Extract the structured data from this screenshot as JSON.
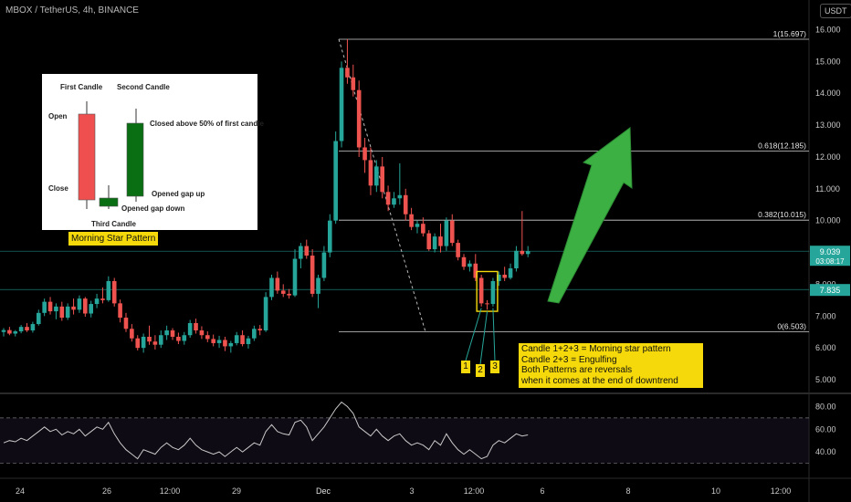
{
  "header": {
    "title": "MBOX / TetherUS, 4h, BINANCE",
    "currency": "USDT"
  },
  "price_labels": {
    "current": "9.039",
    "countdown": "03:08:17",
    "level": "7.835"
  },
  "inset": {
    "first_candle": "First Candle",
    "second_candle": "Second Candle",
    "open": "Open",
    "close": "Close",
    "closed_above": "Closed above 50% of first candle",
    "opened_gap_up": "Opened gap up",
    "opened_gap_down": "Opened gap down",
    "third_candle": "Third Candle",
    "title": "Morning Star Pattern"
  },
  "note": {
    "line1": "Candle 1+2+3 = Morning star pattern",
    "line2": "Candle 2+3 = Engulfing",
    "line3": "Both Patterns are reversals",
    "line4": " when it comes at the end of downtrend"
  },
  "numbers": [
    "1",
    "2",
    "3"
  ],
  "colors": {
    "up": "#26a69a",
    "down": "#ef5350",
    "fib": "#cfcfcf",
    "arrow": "#3cb043",
    "highlight": "#f5d90a",
    "rsi": "#c8c8c8"
  },
  "chart_data": {
    "type": "candlestick",
    "symbol": "MBOX / TetherUS",
    "interval": "4h",
    "exchange": "BINANCE",
    "x_tick_labels": [
      "24",
      "26",
      "12:00",
      "29",
      "Dec",
      "3",
      "12:00",
      "6",
      "8",
      "10",
      "12:00"
    ],
    "y_ticks": [
      5,
      6,
      7,
      8,
      9,
      10,
      11,
      12,
      13,
      14,
      15,
      16
    ],
    "ylim": [
      4.6,
      16.3
    ],
    "grid": false,
    "candles": [
      [
        6.5,
        6.62,
        6.36,
        6.56
      ],
      [
        6.56,
        6.66,
        6.4,
        6.45
      ],
      [
        6.45,
        6.56,
        6.36,
        6.52
      ],
      [
        6.52,
        6.72,
        6.46,
        6.66
      ],
      [
        6.66,
        6.78,
        6.5,
        6.55
      ],
      [
        6.55,
        6.82,
        6.48,
        6.75
      ],
      [
        6.75,
        7.2,
        6.7,
        7.1
      ],
      [
        7.1,
        7.55,
        7.0,
        7.45
      ],
      [
        7.45,
        7.6,
        7.05,
        7.15
      ],
      [
        7.15,
        7.4,
        6.9,
        7.3
      ],
      [
        7.3,
        7.45,
        6.85,
        6.95
      ],
      [
        6.95,
        7.4,
        6.88,
        7.3
      ],
      [
        7.3,
        7.55,
        7.05,
        7.2
      ],
      [
        7.2,
        7.65,
        7.1,
        7.55
      ],
      [
        7.55,
        7.6,
        6.98,
        7.08
      ],
      [
        7.08,
        7.48,
        6.96,
        7.38
      ],
      [
        7.38,
        7.7,
        7.25,
        7.55
      ],
      [
        7.55,
        7.9,
        7.4,
        7.5
      ],
      [
        7.5,
        8.25,
        7.45,
        8.1
      ],
      [
        8.1,
        8.2,
        7.3,
        7.4
      ],
      [
        7.4,
        7.52,
        6.8,
        6.95
      ],
      [
        6.95,
        7.1,
        6.5,
        6.6
      ],
      [
        6.6,
        6.75,
        6.2,
        6.3
      ],
      [
        6.3,
        6.4,
        5.92,
        6.0
      ],
      [
        6.0,
        6.45,
        5.85,
        6.35
      ],
      [
        6.35,
        6.7,
        6.1,
        6.2
      ],
      [
        6.2,
        6.4,
        5.95,
        6.1
      ],
      [
        6.1,
        6.55,
        6.0,
        6.4
      ],
      [
        6.4,
        6.7,
        6.25,
        6.55
      ],
      [
        6.55,
        6.62,
        6.25,
        6.35
      ],
      [
        6.35,
        6.48,
        6.12,
        6.22
      ],
      [
        6.22,
        6.5,
        6.1,
        6.4
      ],
      [
        6.4,
        6.88,
        6.32,
        6.78
      ],
      [
        6.78,
        6.92,
        6.45,
        6.55
      ],
      [
        6.55,
        6.68,
        6.28,
        6.4
      ],
      [
        6.4,
        6.52,
        6.18,
        6.28
      ],
      [
        6.28,
        6.42,
        6.05,
        6.15
      ],
      [
        6.15,
        6.38,
        6.0,
        6.25
      ],
      [
        6.25,
        6.35,
        5.9,
        6.05
      ],
      [
        6.05,
        6.22,
        5.85,
        6.15
      ],
      [
        6.15,
        6.5,
        6.08,
        6.4
      ],
      [
        6.4,
        6.55,
        6.05,
        6.12
      ],
      [
        6.12,
        6.38,
        5.98,
        6.3
      ],
      [
        6.3,
        6.7,
        6.22,
        6.6
      ],
      [
        6.6,
        6.72,
        6.4,
        6.55
      ],
      [
        6.55,
        7.75,
        6.5,
        7.6
      ],
      [
        7.6,
        8.3,
        7.5,
        8.2
      ],
      [
        8.2,
        8.4,
        7.7,
        7.8
      ],
      [
        7.8,
        8.0,
        7.6,
        7.7
      ],
      [
        7.7,
        7.85,
        7.55,
        7.65
      ],
      [
        7.65,
        9.1,
        7.6,
        8.8
      ],
      [
        8.8,
        9.3,
        8.5,
        9.2
      ],
      [
        9.2,
        9.4,
        8.8,
        8.9
      ],
      [
        8.9,
        9.1,
        7.6,
        7.7
      ],
      [
        7.7,
        8.3,
        7.25,
        8.2
      ],
      [
        8.2,
        9.2,
        8.1,
        9.0
      ],
      [
        9.0,
        10.2,
        8.85,
        10.0
      ],
      [
        10.0,
        12.8,
        9.9,
        12.5
      ],
      [
        12.5,
        15.0,
        12.3,
        14.8
      ],
      [
        14.8,
        15.7,
        14.3,
        14.5
      ],
      [
        14.5,
        14.9,
        13.9,
        14.1
      ],
      [
        14.1,
        14.4,
        12.0,
        12.3
      ],
      [
        12.3,
        12.6,
        11.5,
        11.9
      ],
      [
        11.9,
        12.3,
        10.8,
        11.1
      ],
      [
        11.1,
        11.9,
        10.9,
        11.7
      ],
      [
        11.7,
        12.0,
        10.7,
        10.9
      ],
      [
        10.9,
        11.1,
        10.3,
        10.5
      ],
      [
        10.5,
        10.9,
        10.4,
        10.7
      ],
      [
        10.7,
        11.8,
        10.5,
        10.8
      ],
      [
        10.8,
        11.0,
        10.0,
        10.2
      ],
      [
        10.2,
        10.4,
        9.7,
        9.8
      ],
      [
        9.8,
        10.0,
        9.6,
        9.9
      ],
      [
        9.9,
        10.1,
        9.5,
        9.6
      ],
      [
        9.6,
        9.7,
        9.05,
        9.1
      ],
      [
        9.1,
        9.6,
        9.0,
        9.5
      ],
      [
        9.5,
        9.9,
        9.0,
        9.2
      ],
      [
        9.2,
        10.1,
        9.05,
        10.0
      ],
      [
        10.0,
        10.2,
        9.2,
        9.3
      ],
      [
        9.3,
        9.4,
        8.75,
        8.85
      ],
      [
        8.85,
        8.95,
        8.45,
        8.55
      ],
      [
        8.55,
        8.75,
        8.4,
        8.65
      ],
      [
        8.65,
        8.95,
        8.1,
        8.2
      ],
      [
        8.2,
        8.3,
        7.3,
        7.4
      ],
      [
        7.4,
        7.5,
        7.2,
        7.38
      ],
      [
        7.38,
        8.2,
        7.3,
        8.1
      ],
      [
        8.1,
        8.4,
        7.95,
        8.3
      ],
      [
        8.3,
        8.55,
        8.1,
        8.2
      ],
      [
        8.2,
        8.65,
        8.15,
        8.5
      ],
      [
        8.5,
        9.2,
        8.4,
        9.05
      ],
      [
        9.05,
        10.3,
        8.9,
        8.95
      ],
      [
        8.95,
        9.2,
        8.85,
        9.04
      ]
    ],
    "fibonacci": [
      {
        "label": "1(15.697)",
        "value": 15.697
      },
      {
        "label": "0.618(12.185)",
        "value": 12.185
      },
      {
        "label": "0.382(10.015)",
        "value": 10.015
      },
      {
        "label": "0(6.503)",
        "value": 6.503
      }
    ],
    "horizontal_lines": [
      9.039,
      7.835
    ],
    "rsi": {
      "ylim": [
        20,
        90
      ],
      "y_ticks": [
        40,
        60,
        80
      ],
      "upper_band": 70,
      "lower_band": 30,
      "values": [
        48,
        50,
        49,
        52,
        50,
        54,
        58,
        62,
        58,
        60,
        55,
        58,
        56,
        60,
        54,
        58,
        62,
        60,
        66,
        56,
        48,
        42,
        38,
        34,
        42,
        40,
        38,
        44,
        48,
        44,
        42,
        46,
        52,
        46,
        42,
        40,
        38,
        40,
        36,
        40,
        44,
        40,
        44,
        48,
        46,
        58,
        64,
        58,
        56,
        55,
        66,
        68,
        62,
        50,
        56,
        62,
        70,
        78,
        84,
        80,
        74,
        62,
        58,
        54,
        60,
        54,
        50,
        54,
        56,
        50,
        46,
        48,
        46,
        42,
        50,
        46,
        56,
        48,
        42,
        38,
        42,
        38,
        34,
        36,
        46,
        50,
        48,
        52,
        56,
        54,
        55
      ]
    }
  }
}
